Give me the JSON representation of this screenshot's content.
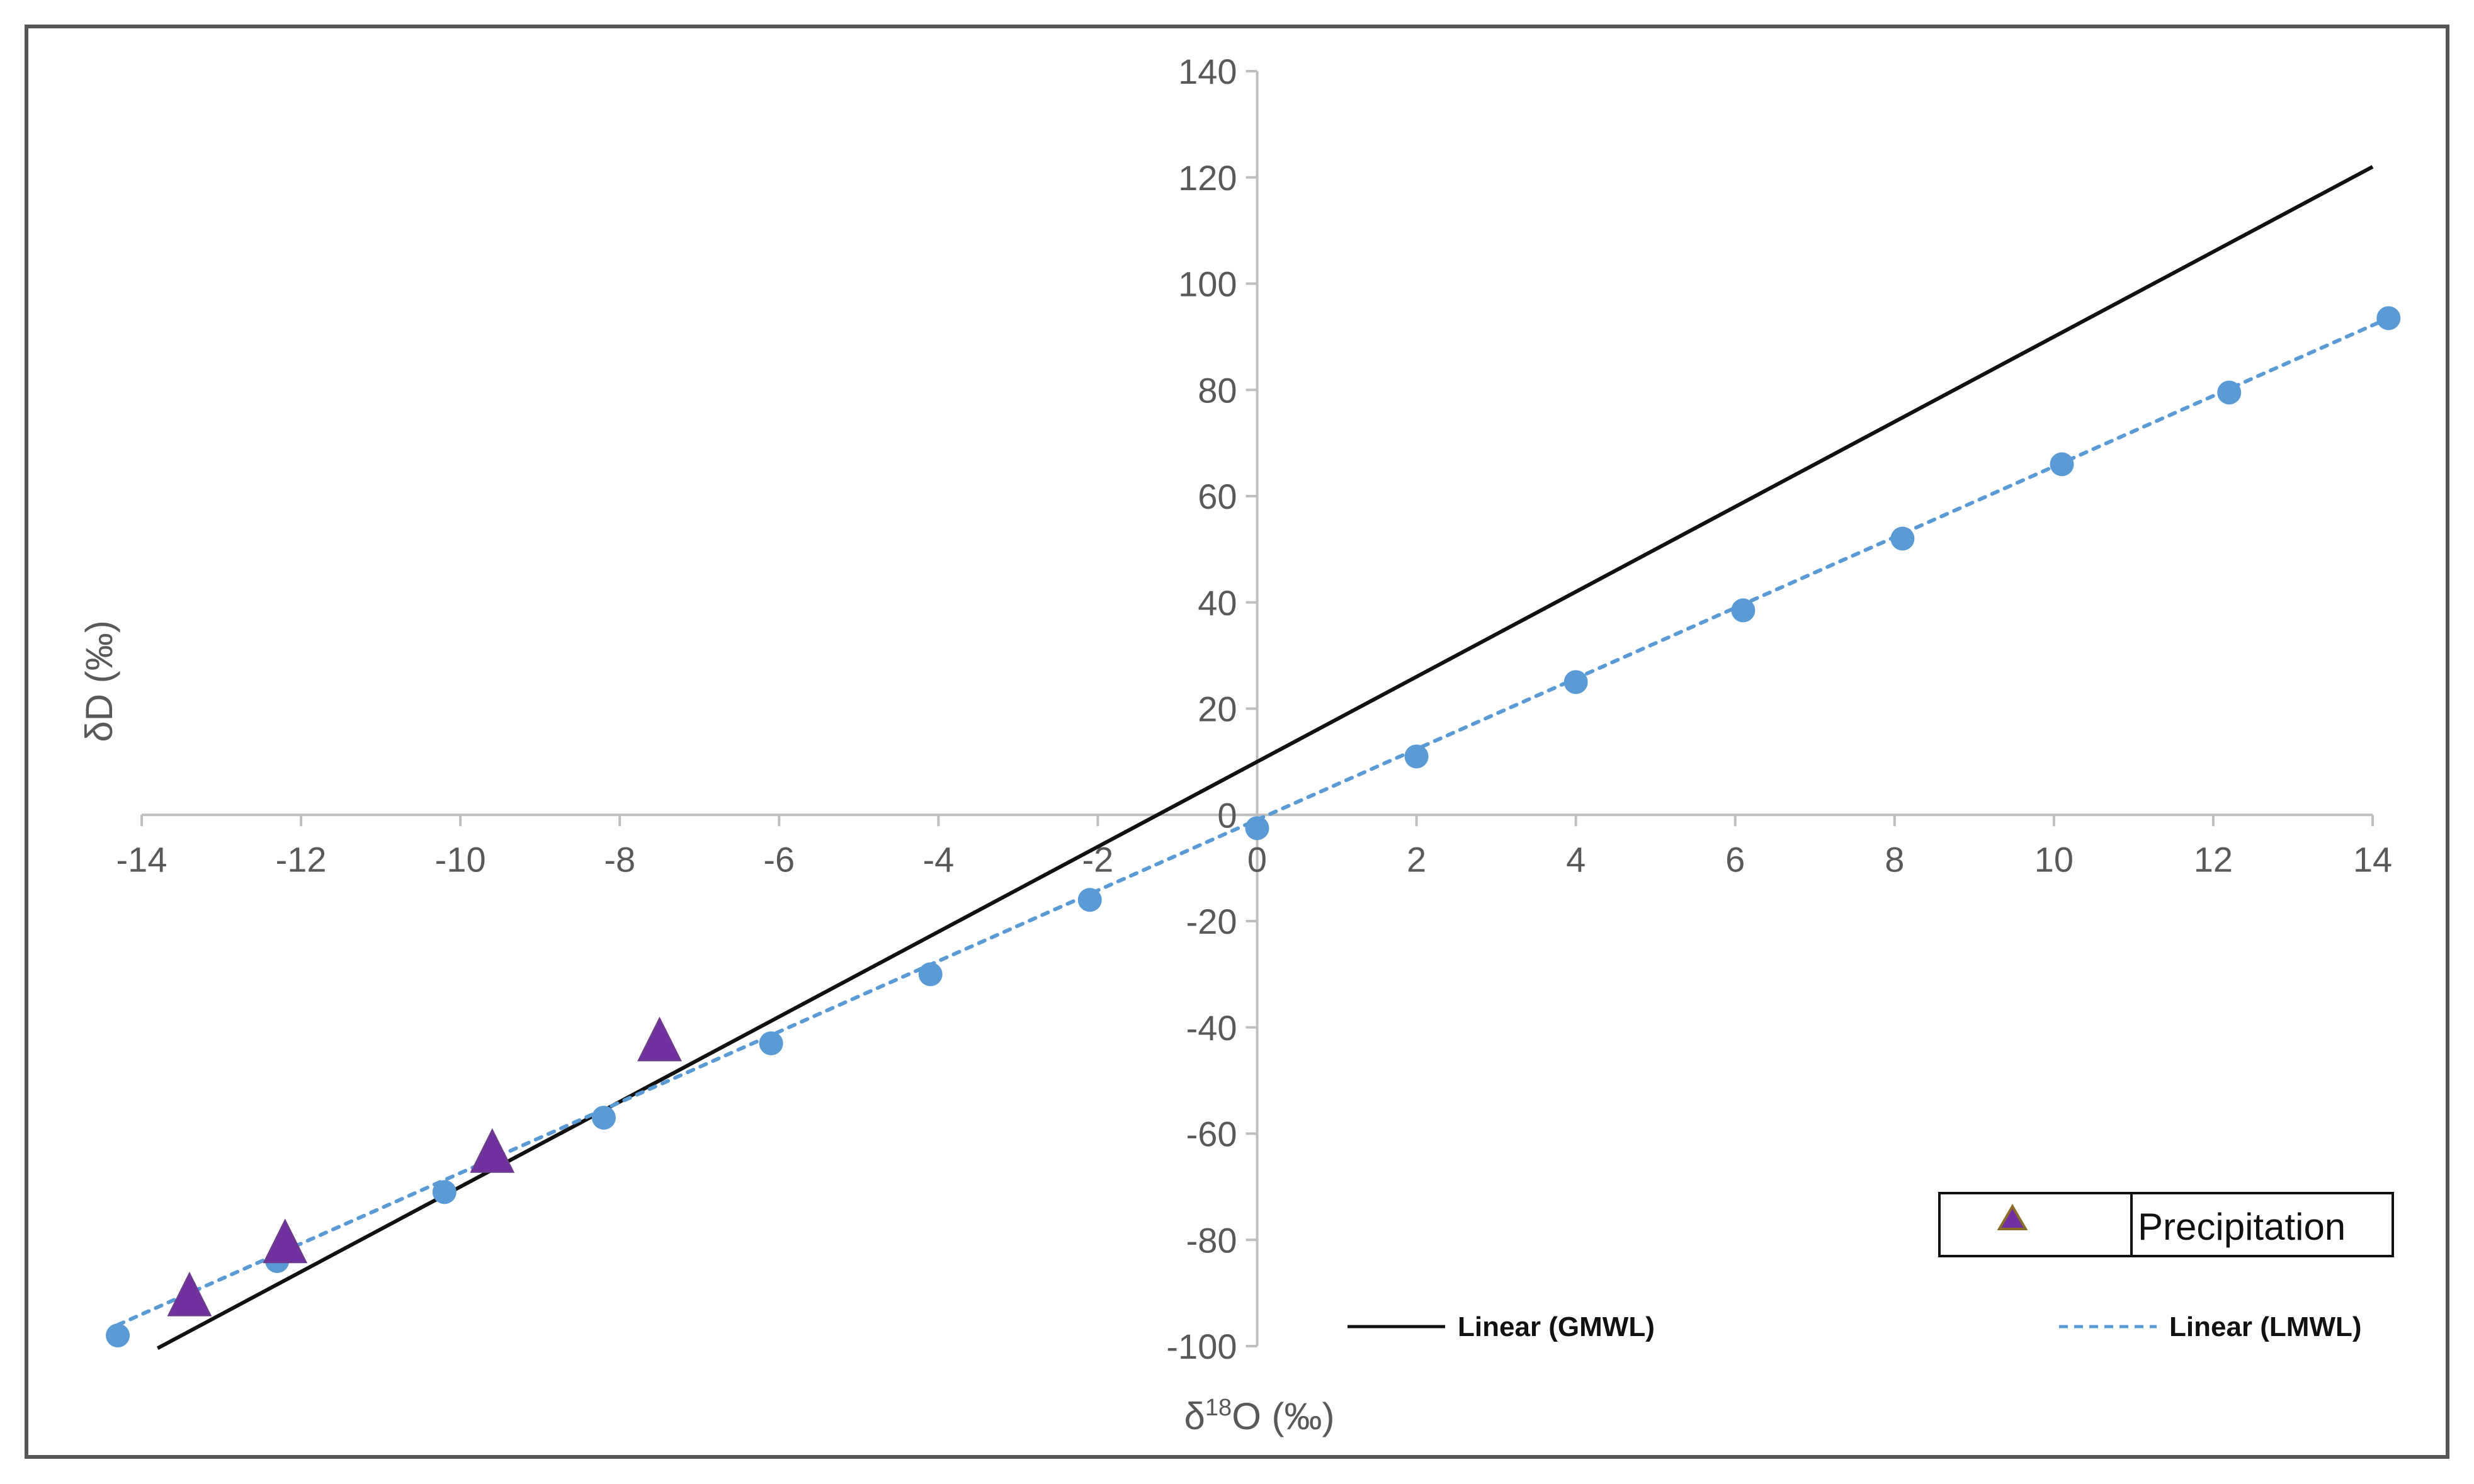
{
  "chart_data": {
    "type": "scatter",
    "title": "",
    "xlabel": "δ18O (‰)",
    "xlabel_parts": {
      "prefix": "δ",
      "superscript": "18",
      "suffix": "O (‰)"
    },
    "ylabel": "δD (‰)",
    "xlim": [
      -14,
      14
    ],
    "ylim": [
      -100,
      140
    ],
    "x_ticks": [
      -14,
      -12,
      -10,
      -8,
      -6,
      -4,
      -2,
      0,
      2,
      4,
      6,
      8,
      10,
      12,
      14
    ],
    "y_ticks": [
      -100,
      -80,
      -60,
      -40,
      -20,
      0,
      20,
      40,
      60,
      80,
      100,
      120,
      140
    ],
    "grid": false,
    "series": [
      {
        "name": "",
        "kind": "points",
        "marker": "circle",
        "color": "#5b9bd5",
        "points": [
          {
            "x": -14.3,
            "y": -98
          },
          {
            "x": -12.3,
            "y": -84
          },
          {
            "x": -10.2,
            "y": -71
          },
          {
            "x": -8.2,
            "y": -57
          },
          {
            "x": -6.1,
            "y": -43
          },
          {
            "x": -4.1,
            "y": -30
          },
          {
            "x": -2.1,
            "y": -16
          },
          {
            "x": 0.0,
            "y": -2.5
          },
          {
            "x": 2.0,
            "y": 11
          },
          {
            "x": 4.0,
            "y": 25
          },
          {
            "x": 6.1,
            "y": 38.5
          },
          {
            "x": 8.1,
            "y": 52
          },
          {
            "x": 10.1,
            "y": 66
          },
          {
            "x": 12.2,
            "y": 79.5
          },
          {
            "x": 14.2,
            "y": 93.5
          }
        ]
      },
      {
        "name": "Precipitation",
        "kind": "points",
        "marker": "triangle",
        "color": "#7030a0",
        "points": [
          {
            "x": -13.4,
            "y": -91
          },
          {
            "x": -12.2,
            "y": -81
          },
          {
            "x": -9.6,
            "y": -64
          },
          {
            "x": -7.5,
            "y": -43
          }
        ]
      },
      {
        "name": "Linear (GMWL)",
        "kind": "line",
        "style": "solid",
        "color": "#111111",
        "points": [
          {
            "x": -13.8,
            "y": -100.4
          },
          {
            "x": 14.0,
            "y": 122
          }
        ]
      },
      {
        "name": "Linear (LMWL)",
        "kind": "line",
        "style": "dotted",
        "color": "#5b9bd5",
        "points": [
          {
            "x": -14.3,
            "y": -96
          },
          {
            "x": 14.2,
            "y": 93.5
          }
        ]
      }
    ],
    "legend": {
      "box_label": "Precipitation",
      "gmwl_label": "Linear (GMWL)",
      "lmwl_label": "Linear (LMWL)",
      "placement": "bottom-right"
    }
  }
}
